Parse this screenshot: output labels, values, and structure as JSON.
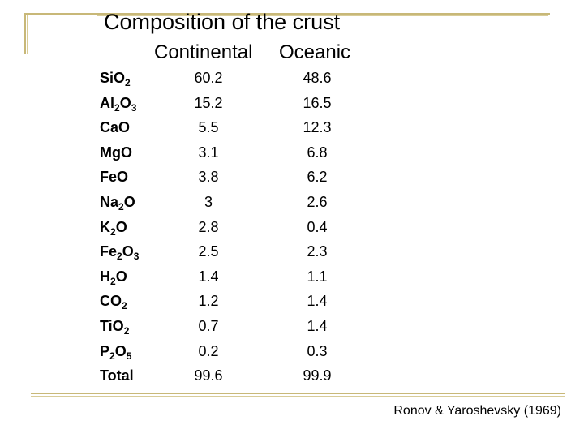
{
  "title": "Composition of the crust",
  "columns": {
    "continental": "Continental",
    "oceanic": "Oceanic"
  },
  "rows": [
    {
      "parts": [
        [
          "Si",
          "O"
        ],
        [
          "",
          "2"
        ]
      ],
      "continental": "60.2",
      "oceanic": "48.6"
    },
    {
      "parts": [
        [
          "Al",
          "O"
        ],
        [
          "2",
          "3"
        ]
      ],
      "continental": "15.2",
      "oceanic": "16.5"
    },
    {
      "parts": [
        [
          "Ca",
          "O"
        ],
        [
          "",
          ""
        ]
      ],
      "continental": "5.5",
      "oceanic": "12.3"
    },
    {
      "parts": [
        [
          "Mg",
          "O"
        ],
        [
          "",
          ""
        ]
      ],
      "continental": "3.1",
      "oceanic": "6.8"
    },
    {
      "parts": [
        [
          "Fe",
          "O"
        ],
        [
          "",
          ""
        ]
      ],
      "continental": "3.8",
      "oceanic": "6.2"
    },
    {
      "parts": [
        [
          "Na",
          "O"
        ],
        [
          "2",
          ""
        ]
      ],
      "continental": "3",
      "oceanic": "2.6"
    },
    {
      "parts": [
        [
          "K",
          "O"
        ],
        [
          "2",
          ""
        ]
      ],
      "continental": "2.8",
      "oceanic": "0.4"
    },
    {
      "parts": [
        [
          "Fe",
          "O"
        ],
        [
          "2",
          "3"
        ]
      ],
      "continental": "2.5",
      "oceanic": "2.3"
    },
    {
      "parts": [
        [
          "H",
          "O"
        ],
        [
          "2",
          ""
        ]
      ],
      "continental": "1.4",
      "oceanic": "1.1"
    },
    {
      "parts": [
        [
          "C",
          "O"
        ],
        [
          "",
          "2"
        ]
      ],
      "continental": "1.2",
      "oceanic": "1.4"
    },
    {
      "parts": [
        [
          "Ti",
          "O"
        ],
        [
          "",
          "2"
        ]
      ],
      "continental": "0.7",
      "oceanic": "1.4"
    },
    {
      "parts": [
        [
          "P",
          "O"
        ],
        [
          "2",
          "5"
        ]
      ],
      "continental": "0.2",
      "oceanic": "0.3"
    },
    {
      "parts": [
        [
          "Total",
          ""
        ],
        [
          "",
          ""
        ]
      ],
      "continental": "99.6",
      "oceanic": "99.9"
    }
  ],
  "citation": "Ronov & Yaroshevsky (1969)"
}
